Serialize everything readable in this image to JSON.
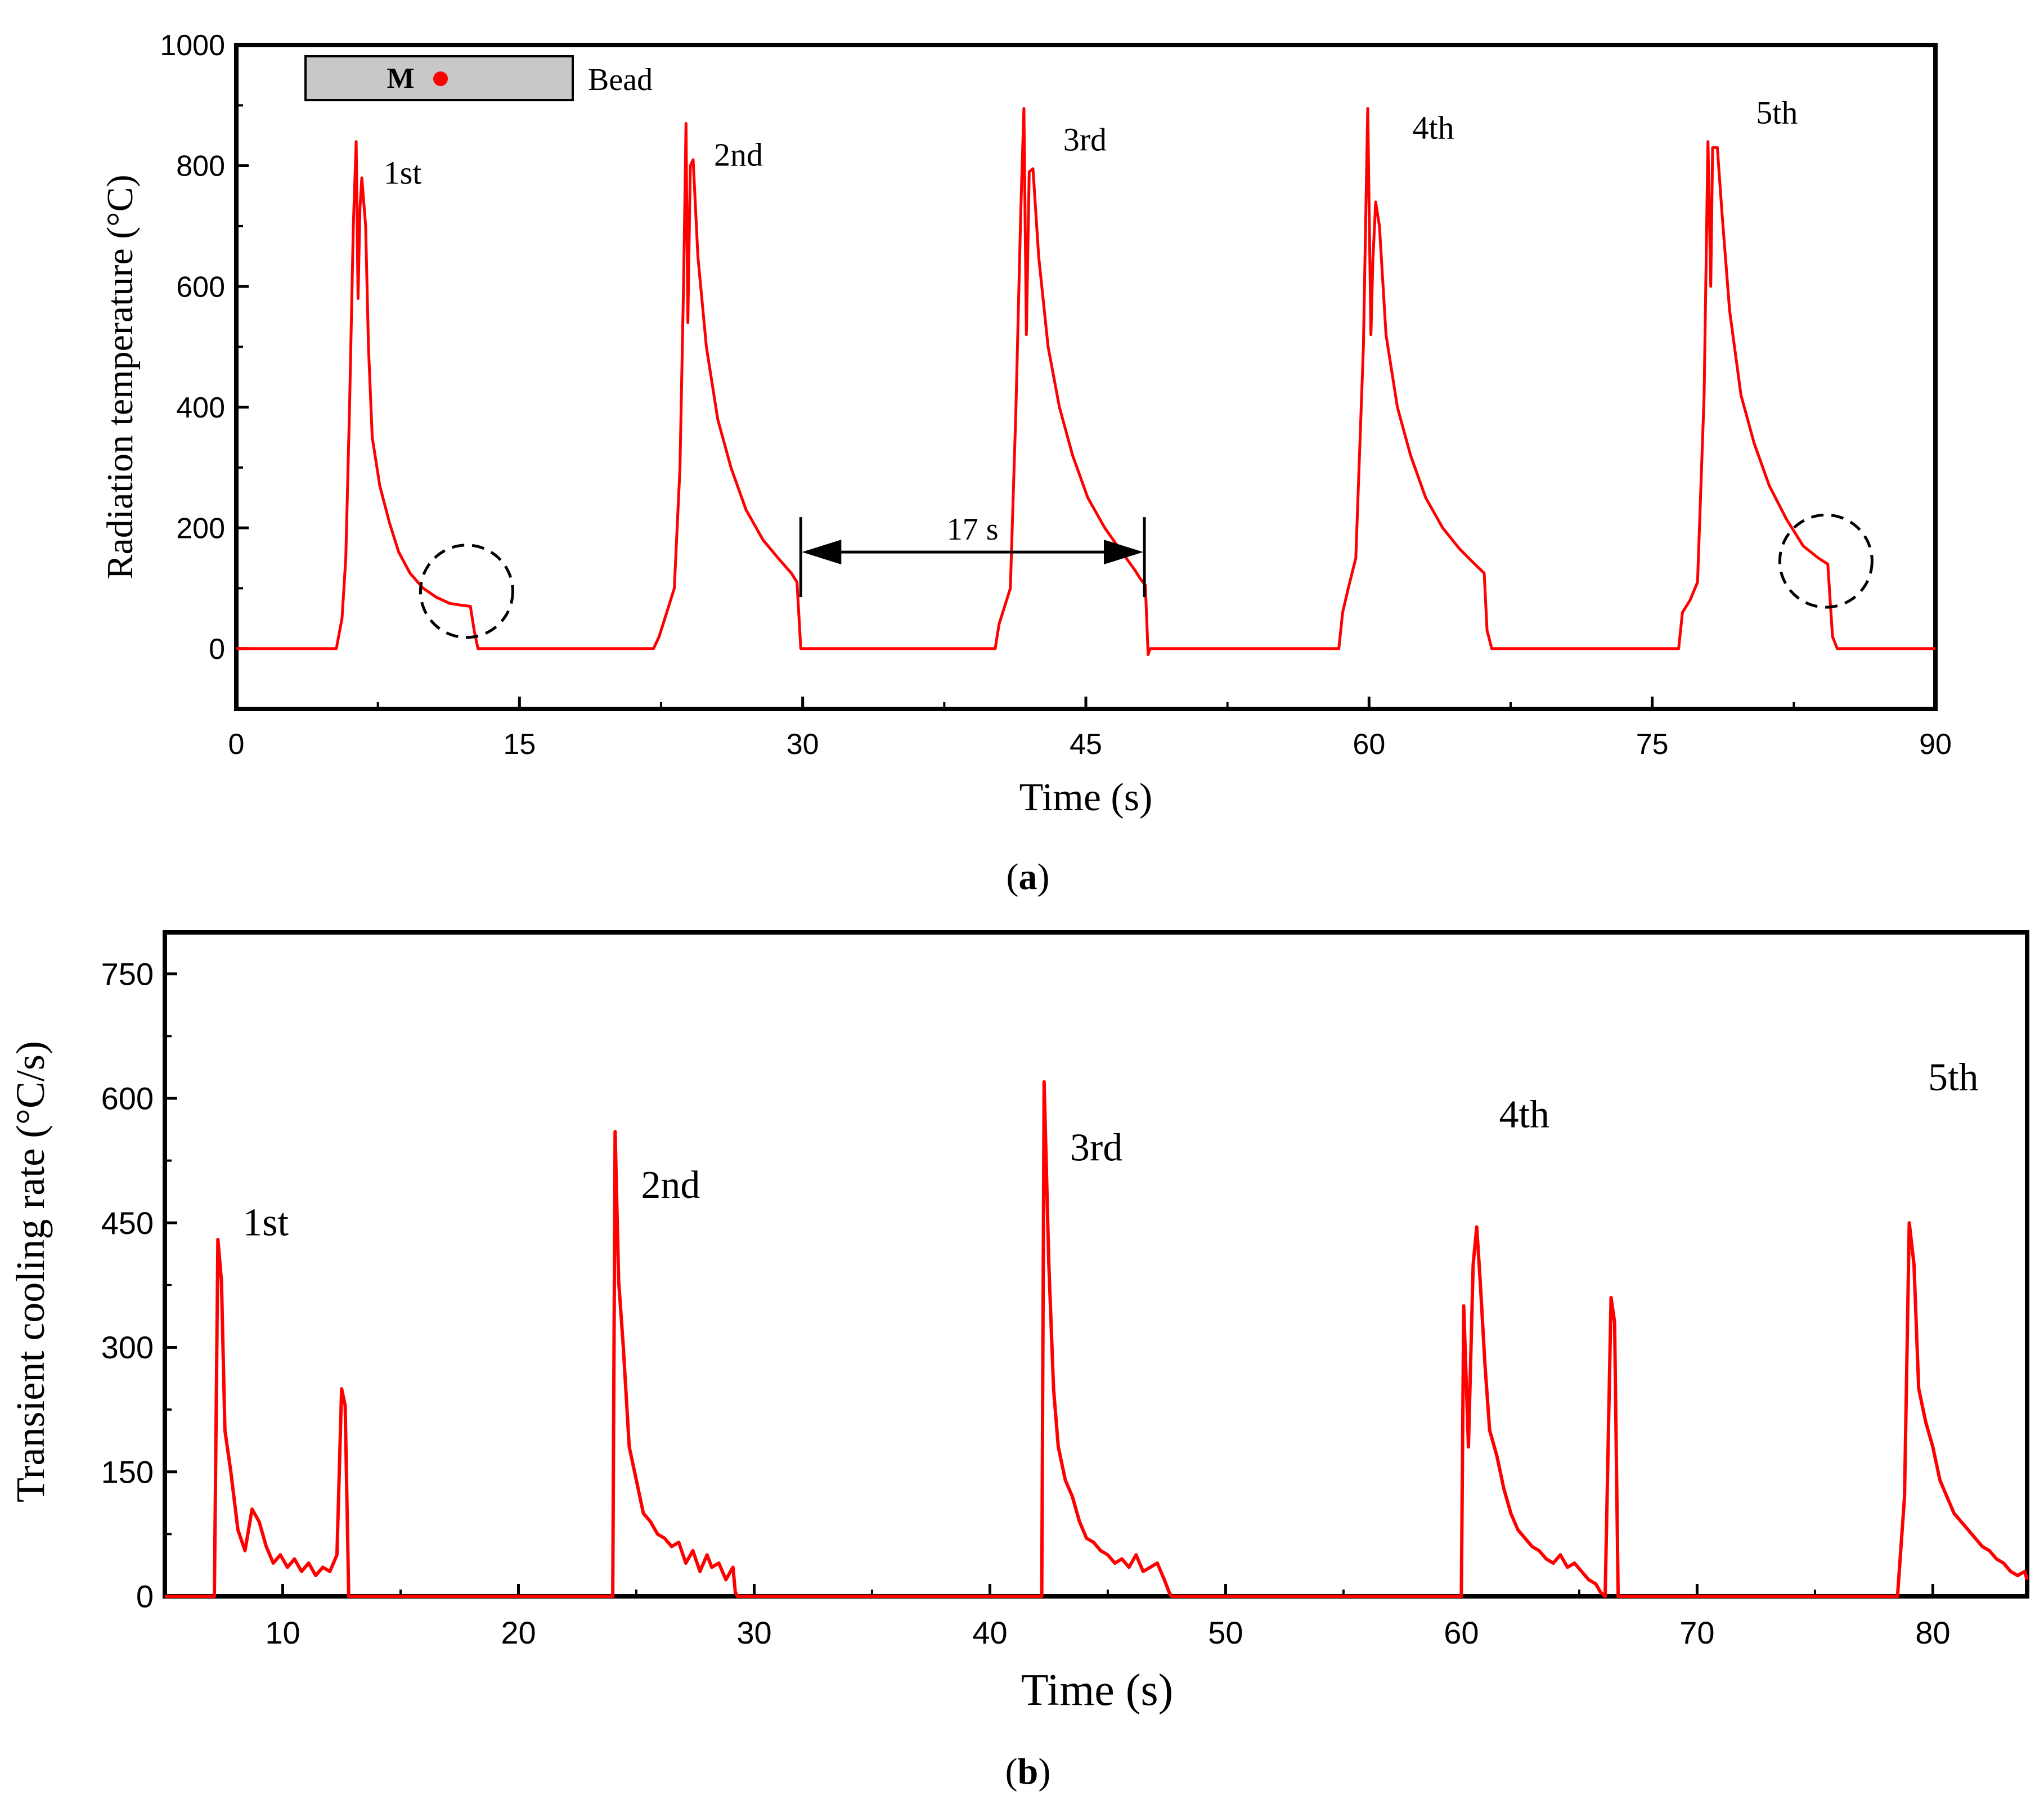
{
  "chart_data": [
    {
      "id": "a",
      "type": "line",
      "panel_label": "(a)",
      "panel_letter": "a",
      "xlabel": "Time (s)",
      "ylabel": "Radiation temperature (°C)",
      "xlim": [
        0,
        90
      ],
      "ylim": [
        -100,
        1000
      ],
      "xticks": [
        0,
        15,
        30,
        45,
        60,
        75,
        90
      ],
      "yticks": [
        0,
        200,
        400,
        600,
        800,
        1000
      ],
      "series_color": "#ff0000",
      "series": [
        {
          "name": "Radiation temperature",
          "x": [
            0,
            5.3,
            5.6,
            5.8,
            6.0,
            6.2,
            6.35,
            6.45,
            6.55,
            6.65,
            6.85,
            7.0,
            7.2,
            7.6,
            8.1,
            8.6,
            9.2,
            9.9,
            10.6,
            11.3,
            11.9,
            12.4,
            12.6,
            12.8,
            22.1,
            22.4,
            22.8,
            23.2,
            23.5,
            23.7,
            23.82,
            23.92,
            24.05,
            24.2,
            24.45,
            24.9,
            25.5,
            26.2,
            27.0,
            27.9,
            28.7,
            29.4,
            29.7,
            29.9,
            40.2,
            40.4,
            40.7,
            41.0,
            41.3,
            41.55,
            41.72,
            41.85,
            42.0,
            42.2,
            42.5,
            43.0,
            43.6,
            44.3,
            45.1,
            46.0,
            46.9,
            47.6,
            47.9,
            48.15,
            48.3,
            48.4,
            58.4,
            58.6,
            58.9,
            59.3,
            59.7,
            59.93,
            60.1,
            60.2,
            60.35,
            60.55,
            60.9,
            61.5,
            62.2,
            63.0,
            63.9,
            64.8,
            65.6,
            66.1,
            66.25,
            66.5,
            76.4,
            76.6,
            77.0,
            77.4,
            77.75,
            77.95,
            78.1,
            78.2,
            78.45,
            78.7,
            79.1,
            79.7,
            80.4,
            81.2,
            82.1,
            83.0,
            83.8,
            84.3,
            84.55,
            84.8,
            90
          ],
          "y": [
            0,
            0,
            50,
            150,
            400,
            700,
            840,
            580,
            730,
            780,
            700,
            500,
            350,
            270,
            210,
            160,
            125,
            100,
            85,
            75,
            72,
            70,
            30,
            0,
            0,
            20,
            60,
            100,
            300,
            620,
            870,
            540,
            800,
            810,
            650,
            500,
            380,
            300,
            230,
            180,
            150,
            125,
            110,
            0,
            0,
            40,
            70,
            100,
            400,
            720,
            895,
            520,
            790,
            795,
            650,
            500,
            400,
            320,
            250,
            200,
            160,
            130,
            115,
            105,
            -10,
            0,
            0,
            60,
            100,
            150,
            500,
            895,
            520,
            640,
            740,
            700,
            520,
            400,
            320,
            250,
            200,
            165,
            140,
            125,
            30,
            0,
            0,
            60,
            80,
            110,
            420,
            840,
            600,
            830,
            830,
            720,
            560,
            420,
            340,
            270,
            215,
            170,
            150,
            140,
            20,
            0,
            0
          ]
        }
      ],
      "peak_labels": [
        {
          "text": "1st",
          "x": 7.8,
          "y": 770
        },
        {
          "text": "2nd",
          "x": 25.3,
          "y": 800
        },
        {
          "text": "3rd",
          "x": 43.8,
          "y": 825
        },
        {
          "text": "4th",
          "x": 62.3,
          "y": 845
        },
        {
          "text": "5th",
          "x": 80.5,
          "y": 870
        }
      ],
      "inset": {
        "marker": "M",
        "bead_label": "Bead"
      },
      "interval": {
        "text": "17 s",
        "x_start": 29.9,
        "x_end": 48.1,
        "y": 160
      },
      "circles": [
        {
          "x": 12.2,
          "y": 95
        },
        {
          "x": 84.2,
          "y": 145
        }
      ]
    },
    {
      "id": "b",
      "type": "line",
      "panel_label": "(b)",
      "panel_letter": "b",
      "xlabel": "Time (s)",
      "ylabel": "Transient cooling rate (°C/s)",
      "xlim": [
        5,
        84
      ],
      "ylim": [
        0,
        800
      ],
      "xticks": [
        10,
        20,
        30,
        40,
        50,
        60,
        70,
        80
      ],
      "yticks": [
        0,
        150,
        300,
        450,
        600,
        750
      ],
      "series_color": "#ff0000",
      "series": [
        {
          "name": "Transient cooling rate",
          "x": [
            5,
            7.1,
            7.25,
            7.4,
            7.55,
            7.8,
            8.1,
            8.4,
            8.7,
            9.0,
            9.3,
            9.6,
            9.9,
            10.2,
            10.5,
            10.8,
            11.1,
            11.4,
            11.7,
            12.0,
            12.3,
            12.5,
            12.65,
            12.8,
            13.0,
            24.0,
            24.1,
            24.25,
            24.45,
            24.7,
            25.0,
            25.3,
            25.6,
            25.9,
            26.2,
            26.5,
            26.8,
            27.1,
            27.4,
            27.7,
            28.0,
            28.2,
            28.5,
            28.8,
            29.1,
            29.2,
            29.3,
            42.2,
            42.3,
            42.5,
            42.7,
            42.9,
            43.2,
            43.5,
            43.8,
            44.1,
            44.4,
            44.7,
            45.0,
            45.3,
            45.6,
            45.9,
            46.2,
            46.5,
            46.8,
            47.1,
            47.4,
            47.6,
            47.7,
            60.0,
            60.1,
            60.3,
            60.5,
            60.65,
            60.8,
            61.0,
            61.2,
            61.5,
            61.8,
            62.1,
            62.4,
            62.7,
            63.0,
            63.3,
            63.6,
            63.9,
            64.2,
            64.5,
            64.8,
            65.1,
            65.4,
            65.7,
            65.9,
            66.1,
            66.35,
            66.5,
            66.65,
            66.8,
            78.5,
            78.8,
            79.0,
            79.2,
            79.4,
            79.7,
            80.0,
            80.3,
            80.6,
            80.9,
            81.2,
            81.5,
            81.8,
            82.1,
            82.4,
            82.7,
            83.0,
            83.3,
            83.6,
            83.9,
            84
          ],
          "y": [
            0,
            0,
            430,
            380,
            200,
            150,
            80,
            55,
            105,
            90,
            60,
            40,
            50,
            35,
            45,
            30,
            40,
            25,
            35,
            30,
            50,
            250,
            230,
            0,
            0,
            0,
            560,
            380,
            300,
            180,
            140,
            100,
            90,
            75,
            70,
            60,
            65,
            40,
            55,
            30,
            50,
            35,
            40,
            20,
            35,
            5,
            0,
            0,
            620,
            400,
            250,
            180,
            140,
            120,
            90,
            70,
            65,
            55,
            50,
            40,
            45,
            35,
            50,
            30,
            35,
            40,
            20,
            5,
            0,
            0,
            350,
            180,
            400,
            445,
            380,
            280,
            200,
            170,
            130,
            100,
            80,
            70,
            60,
            55,
            45,
            40,
            50,
            35,
            40,
            30,
            20,
            15,
            5,
            0,
            360,
            330,
            0,
            0,
            0,
            120,
            450,
            400,
            250,
            210,
            180,
            140,
            120,
            100,
            90,
            80,
            70,
            60,
            55,
            45,
            40,
            30,
            25,
            30,
            20
          ]
        }
      ],
      "peak_labels": [
        {
          "text": "1st",
          "x": 8.3,
          "y": 435
        },
        {
          "text": "2nd",
          "x": 25.2,
          "y": 480
        },
        {
          "text": "3rd",
          "x": 43.4,
          "y": 525
        },
        {
          "text": "4th",
          "x": 61.6,
          "y": 565
        },
        {
          "text": "5th",
          "x": 79.8,
          "y": 610
        }
      ]
    }
  ]
}
